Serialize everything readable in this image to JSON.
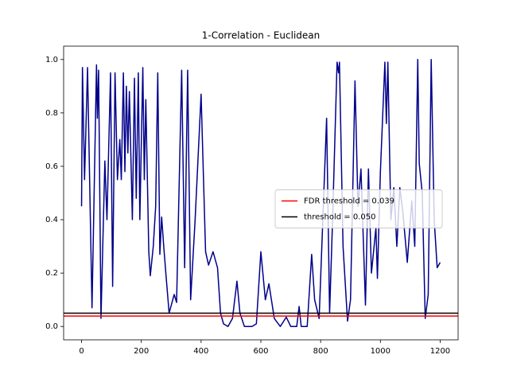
{
  "chart_data": {
    "type": "line",
    "title": "1-Correlation - Euclidean",
    "x": [
      0,
      3,
      10,
      20,
      35,
      50,
      53,
      57,
      65,
      78,
      85,
      97,
      104,
      112,
      120,
      128,
      133,
      140,
      145,
      150,
      155,
      160,
      170,
      177,
      183,
      190,
      195,
      205,
      210,
      215,
      225,
      230,
      240,
      248,
      255,
      262,
      268,
      275,
      282,
      293,
      310,
      318,
      335,
      345,
      355,
      365,
      380,
      400,
      415,
      425,
      440,
      455,
      465,
      475,
      490,
      505,
      520,
      530,
      545,
      570,
      585,
      600,
      615,
      627,
      645,
      665,
      685,
      700,
      720,
      728,
      735,
      755,
      770,
      780,
      795,
      820,
      830,
      840,
      855,
      860,
      863,
      875,
      890,
      900,
      915,
      925,
      935,
      950,
      960,
      970,
      985,
      990,
      1000,
      1015,
      1020,
      1025,
      1035,
      1045,
      1055,
      1065,
      1075,
      1090,
      1105,
      1115,
      1125,
      1130,
      1140,
      1150,
      1160,
      1170,
      1180,
      1190,
      1200
    ],
    "series": [
      {
        "color": "#00008b",
        "values": [
          0.45,
          0.97,
          0.55,
          0.97,
          0.07,
          0.98,
          0.78,
          0.96,
          0.03,
          0.62,
          0.4,
          0.95,
          0.15,
          0.95,
          0.55,
          0.7,
          0.55,
          0.95,
          0.58,
          0.9,
          0.65,
          0.88,
          0.4,
          0.93,
          0.48,
          0.95,
          0.4,
          0.97,
          0.55,
          0.85,
          0.28,
          0.19,
          0.3,
          0.45,
          0.95,
          0.27,
          0.41,
          0.3,
          0.2,
          0.05,
          0.12,
          0.09,
          0.96,
          0.22,
          0.96,
          0.1,
          0.4,
          0.87,
          0.28,
          0.23,
          0.28,
          0.22,
          0.05,
          0.01,
          0.0,
          0.03,
          0.17,
          0.05,
          0.0,
          0.0,
          0.01,
          0.28,
          0.1,
          0.16,
          0.03,
          0.0,
          0.035,
          0.0,
          0.0,
          0.075,
          0.0,
          0.0,
          0.27,
          0.1,
          0.03,
          0.78,
          0.05,
          0.4,
          0.99,
          0.95,
          0.99,
          0.3,
          0.02,
          0.1,
          0.92,
          0.45,
          0.59,
          0.08,
          0.59,
          0.2,
          0.37,
          0.18,
          0.58,
          0.99,
          0.76,
          0.99,
          0.4,
          0.52,
          0.3,
          0.52,
          0.43,
          0.24,
          0.47,
          0.3,
          1.0,
          0.61,
          0.5,
          0.03,
          0.12,
          1.0,
          0.4,
          0.22,
          0.24
        ]
      }
    ],
    "reference_lines": [
      {
        "name": "FDR threshold = 0.039",
        "value": 0.039,
        "color": "#ff0000"
      },
      {
        "name": "threshold = 0.050",
        "value": 0.05,
        "color": "#000000"
      }
    ],
    "xlim": [
      -60,
      1260
    ],
    "ylim": [
      -0.05,
      1.05
    ],
    "xticks": [
      0,
      200,
      400,
      600,
      800,
      1000,
      1200
    ],
    "yticks": [
      {
        "value": 0,
        "label": "0.0"
      },
      0.2,
      0.4,
      0.6,
      0.8,
      {
        "value": 1,
        "label": "1.0"
      }
    ],
    "legend": "center right"
  }
}
